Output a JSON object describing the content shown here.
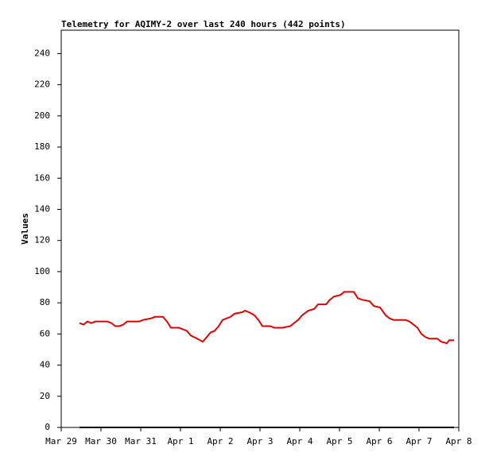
{
  "chart_data": {
    "type": "line",
    "title": "Telemetry for AQIMY-2 over last 240 hours (442 points)",
    "y_label": "Values",
    "xlim": [
      0,
      10
    ],
    "ylim": [
      0,
      255
    ],
    "xticks": [
      {
        "value": 0,
        "label": "Mar 29"
      },
      {
        "value": 1,
        "label": "Mar 30"
      },
      {
        "value": 2,
        "label": "Mar 31"
      },
      {
        "value": 3,
        "label": "Apr 1"
      },
      {
        "value": 4,
        "label": "Apr 2"
      },
      {
        "value": 5,
        "label": "Apr 3"
      },
      {
        "value": 6,
        "label": "Apr 4"
      },
      {
        "value": 7,
        "label": "Apr 5"
      },
      {
        "value": 8,
        "label": "Apr 6"
      },
      {
        "value": 9,
        "label": "Apr 7"
      },
      {
        "value": 10,
        "label": "Apr 8"
      }
    ],
    "yticks": [
      0,
      20,
      40,
      60,
      80,
      100,
      120,
      140,
      160,
      180,
      200,
      220,
      240
    ],
    "series": [
      {
        "color": "#000000",
        "x": [
          0.46,
          9.88
        ],
        "values": [
          0,
          0
        ]
      },
      {
        "color": "#dd0000",
        "x": [
          0.46,
          0.56,
          0.66,
          0.76,
          0.86,
          1.16,
          1.26,
          1.36,
          1.46,
          1.56,
          1.66,
          1.96,
          2.06,
          2.26,
          2.36,
          2.56,
          2.66,
          2.76,
          2.96,
          3.16,
          3.26,
          3.42,
          3.56,
          3.66,
          3.76,
          3.86,
          3.96,
          4.06,
          4.26,
          4.36,
          4.56,
          4.62,
          4.72,
          4.86,
          4.96,
          5.06,
          5.26,
          5.36,
          5.56,
          5.76,
          5.96,
          6.06,
          6.22,
          6.36,
          6.46,
          6.56,
          6.66,
          6.76,
          6.86,
          7.02,
          7.12,
          7.36,
          7.46,
          7.56,
          7.76,
          7.86,
          8.02,
          8.16,
          8.26,
          8.36,
          8.66,
          8.76,
          8.86,
          8.96,
          9.06,
          9.16,
          9.26,
          9.46,
          9.56,
          9.7,
          9.76,
          9.88
        ],
        "values": [
          67,
          66,
          68,
          67,
          68,
          68,
          67,
          65,
          65,
          66,
          68,
          68,
          69,
          70,
          71,
          71,
          68,
          64,
          64,
          62,
          59,
          57,
          55,
          58,
          61,
          62,
          65,
          69,
          71,
          73,
          74,
          75,
          74,
          72,
          69,
          65,
          65,
          64,
          64,
          65,
          69,
          72,
          75,
          76,
          79,
          79,
          79,
          82,
          84,
          85,
          87,
          87,
          83,
          82,
          81,
          78,
          77,
          72,
          70,
          69,
          69,
          68,
          66,
          64,
          60,
          58,
          57,
          57,
          55,
          54,
          56,
          56
        ]
      }
    ]
  }
}
